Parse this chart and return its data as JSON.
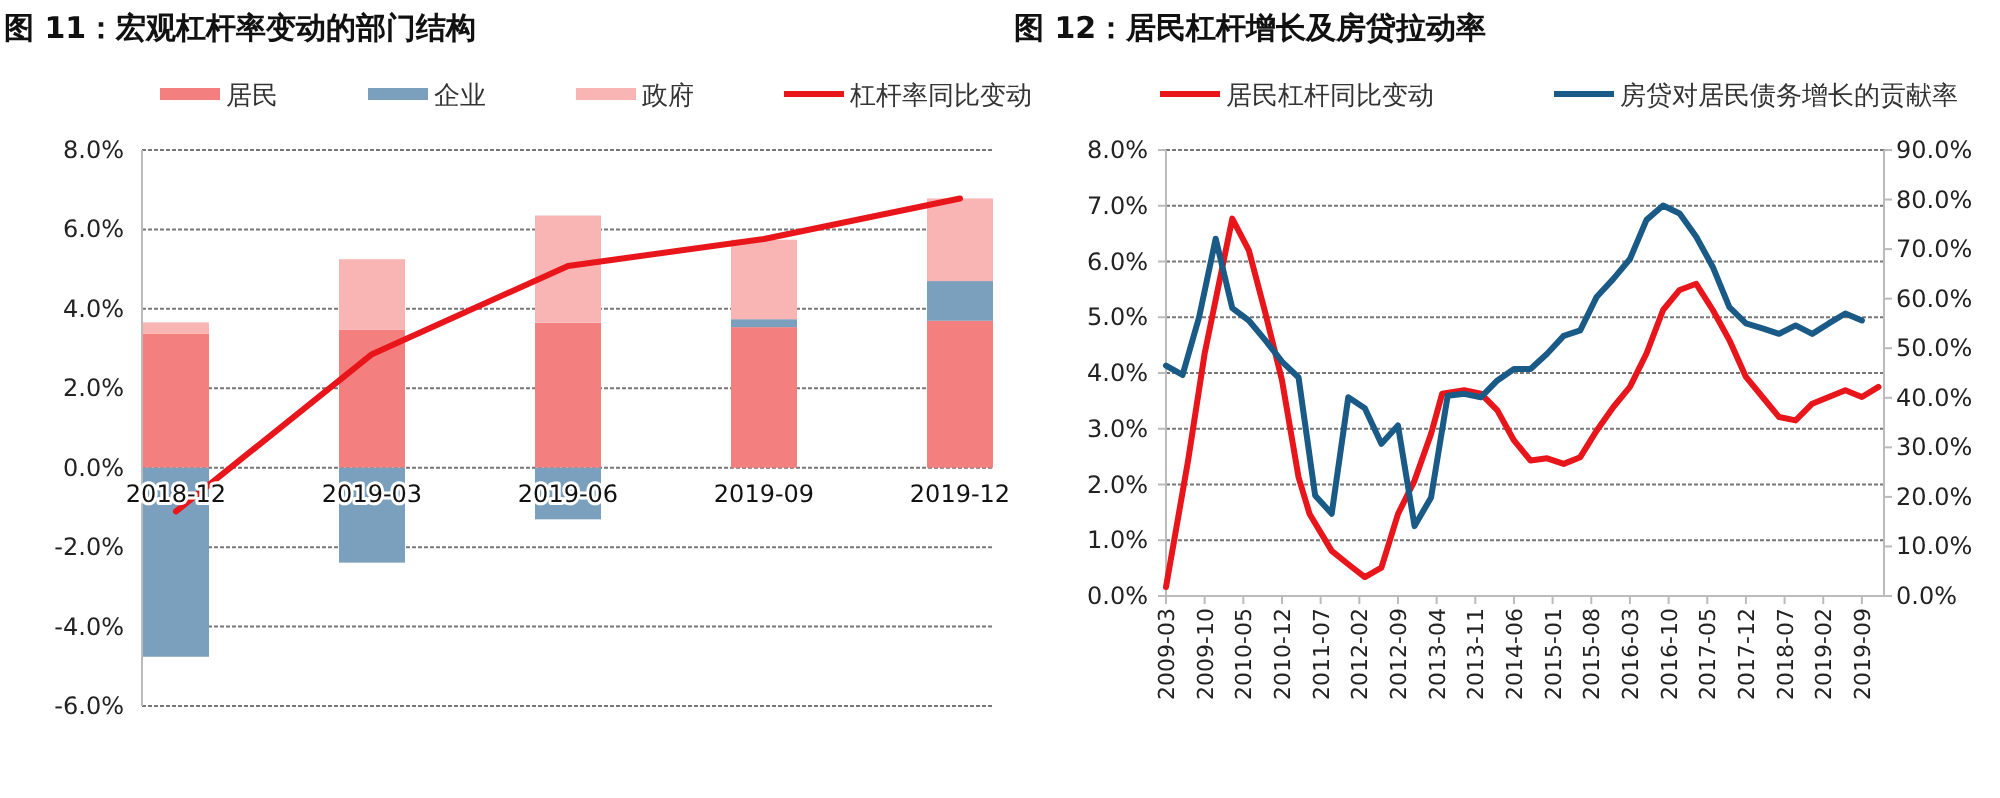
{
  "chart_data": [
    {
      "type": "bar",
      "title": "图 11：宏观杠杆率变动的部门结构",
      "stacked": true,
      "grid": "y",
      "legend": "top",
      "categories": [
        "2018-12",
        "2019-03",
        "2019-06",
        "2019-09",
        "2019-12"
      ],
      "ylim": [
        -6,
        8
      ],
      "yticks": [
        {
          "value": -6,
          "label": "-6.0%"
        },
        {
          "value": -4,
          "label": "-4.0%"
        },
        {
          "value": -2,
          "label": "-2.0%"
        },
        {
          "value": 0,
          "label": "0.0%"
        },
        {
          "value": 2,
          "label": "2.0%"
        },
        {
          "value": 4,
          "label": "4.0%"
        },
        {
          "value": 6,
          "label": "6.0%"
        },
        {
          "value": 8,
          "label": "8.0%"
        }
      ],
      "series": [
        {
          "name": "居民",
          "color": "#f47f7f",
          "values": [
            3.37,
            3.48,
            3.65,
            3.54,
            3.7
          ]
        },
        {
          "name": "企业",
          "color": "#7aa0bd",
          "values": [
            -4.76,
            -2.39,
            -1.3,
            0.2,
            1.0
          ]
        },
        {
          "name": "政府",
          "color": "#f9b4b4",
          "values": [
            0.29,
            1.77,
            2.7,
            2.0,
            2.08
          ]
        },
        {
          "name": "杠杆率同比变动",
          "color": "#e8151b",
          "type": "line",
          "values": [
            -1.1,
            2.86,
            5.08,
            5.76,
            6.78
          ]
        }
      ]
    },
    {
      "type": "line",
      "title": "图 12：居民杠杆增长及房贷拉动率",
      "grid": "y",
      "legend": "top",
      "xlim": [
        "2009-03",
        "2020-01"
      ],
      "xticks": [
        "2009-03",
        "2009-10",
        "2010-05",
        "2010-12",
        "2011-07",
        "2012-02",
        "2012-09",
        "2013-04",
        "2013-11",
        "2014-06",
        "2015-01",
        "2015-08",
        "2016-03",
        "2016-10",
        "2017-05",
        "2017-12",
        "2018-07",
        "2019-02",
        "2019-09"
      ],
      "ylim": [
        0,
        8
      ],
      "yticks": [
        {
          "value": 0,
          "label": "0.0%"
        },
        {
          "value": 1,
          "label": "1.0%"
        },
        {
          "value": 2,
          "label": "2.0%"
        },
        {
          "value": 3,
          "label": "3.0%"
        },
        {
          "value": 4,
          "label": "4.0%"
        },
        {
          "value": 5,
          "label": "5.0%"
        },
        {
          "value": 6,
          "label": "6.0%"
        },
        {
          "value": 7,
          "label": "7.0%"
        },
        {
          "value": 8,
          "label": "8.0%"
        }
      ],
      "y2lim": [
        0,
        90
      ],
      "y2ticks": [
        {
          "value": 0,
          "label": "0.0%"
        },
        {
          "value": 10,
          "label": "10.0%"
        },
        {
          "value": 20,
          "label": "20.0%"
        },
        {
          "value": 30,
          "label": "30.0%"
        },
        {
          "value": 40,
          "label": "40.0%"
        },
        {
          "value": 50,
          "label": "50.0%"
        },
        {
          "value": 60,
          "label": "60.0%"
        },
        {
          "value": 70,
          "label": "70.0%"
        },
        {
          "value": 80,
          "label": "80.0%"
        },
        {
          "value": 90,
          "label": "90.0%"
        }
      ],
      "series": [
        {
          "name": "居民杠杆同比变动",
          "color": "#e8151b",
          "x": [
            "2009-03",
            "2009-07",
            "2009-10",
            "2010-03",
            "2010-06",
            "2010-09",
            "2010-12",
            "2011-03",
            "2011-05",
            "2011-09",
            "2011-12",
            "2012-03",
            "2012-06",
            "2012-09",
            "2012-12",
            "2013-03",
            "2013-05",
            "2013-09",
            "2013-12",
            "2014-03",
            "2014-06",
            "2014-09",
            "2014-12",
            "2015-03",
            "2015-06",
            "2015-09",
            "2015-12",
            "2016-03",
            "2016-06",
            "2016-09",
            "2016-12",
            "2017-03",
            "2017-06",
            "2017-09",
            "2017-12",
            "2018-03",
            "2018-06",
            "2018-09",
            "2018-12",
            "2019-03",
            "2019-06",
            "2019-09",
            "2019-12"
          ],
          "values": [
            0.16,
            2.43,
            4.35,
            6.77,
            6.2,
            5.07,
            3.87,
            2.13,
            1.47,
            0.81,
            0.57,
            0.34,
            0.51,
            1.47,
            2.07,
            2.91,
            3.63,
            3.69,
            3.63,
            3.33,
            2.79,
            2.43,
            2.47,
            2.37,
            2.49,
            2.97,
            3.39,
            3.75,
            4.35,
            5.13,
            5.49,
            5.6,
            5.13,
            4.59,
            3.93,
            3.57,
            3.21,
            3.15,
            3.45,
            3.57,
            3.69,
            3.57,
            3.75
          ]
        },
        {
          "name": "房贷对居民债务增长的贡献率",
          "color": "#1a5a86",
          "axis": "y2",
          "x": [
            "2009-03",
            "2009-06",
            "2009-09",
            "2009-12",
            "2010-03",
            "2010-06",
            "2010-09",
            "2010-12",
            "2011-03",
            "2011-06",
            "2011-09",
            "2011-12",
            "2012-03",
            "2012-06",
            "2012-09",
            "2012-12",
            "2013-03",
            "2013-06",
            "2013-09",
            "2013-12",
            "2014-03",
            "2014-06",
            "2014-09",
            "2014-12",
            "2015-03",
            "2015-06",
            "2015-09",
            "2015-12",
            "2016-03",
            "2016-06",
            "2016-09",
            "2016-12",
            "2017-03",
            "2017-06",
            "2017-09",
            "2017-12",
            "2018-03",
            "2018-06",
            "2018-09",
            "2018-12",
            "2019-03",
            "2019-06",
            "2019-09"
          ],
          "values": [
            46.5,
            44.6,
            56.3,
            72.1,
            58.1,
            55.6,
            51.6,
            47.3,
            44.1,
            20.3,
            16.6,
            40.1,
            37.9,
            30.7,
            34.4,
            14.1,
            19.9,
            40.4,
            40.8,
            40.1,
            43.5,
            45.8,
            45.8,
            48.9,
            52.5,
            53.6,
            60.4,
            64,
            68,
            75.9,
            78.8,
            77.2,
            72.5,
            66.4,
            58.3,
            55,
            54,
            52.9,
            54.6,
            52.9,
            55,
            57,
            55.6
          ]
        }
      ]
    }
  ]
}
